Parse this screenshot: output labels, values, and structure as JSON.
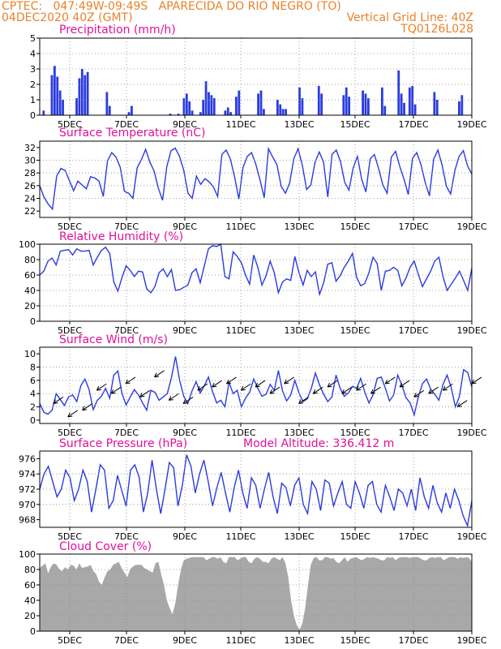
{
  "header": {
    "line1_left": "CPTEC:   047:49W-09:49S   APARECIDA DO RIO NEGRO (TO)",
    "line2_left": "04DEC2020 40Z (GMT)",
    "line2_right": "Vertical Grid Line: 40Z",
    "line3_right": "TQ0126L028"
  },
  "colors": {
    "header": "#e8822a",
    "title": "#e0109a",
    "series": "#2a3be0",
    "cloud": "#a8a8a8"
  },
  "x_ticks": [
    "5DEC",
    "7DEC",
    "9DEC",
    "11DEC",
    "13DEC",
    "15DEC",
    "17DEC",
    "19DEC"
  ],
  "panels": [
    {
      "key": "precip",
      "title": "Precipitation (mm/h)",
      "type": "bar",
      "ylim": [
        0,
        5
      ],
      "yticks": [
        "0",
        "1",
        "2",
        "3",
        "4",
        "5"
      ],
      "values": [
        0,
        0.3,
        0,
        0,
        2.6,
        3.2,
        2.5,
        1.6,
        1.0,
        0,
        0,
        0,
        0,
        1.1,
        2.4,
        3.0,
        2.6,
        2.8,
        0,
        0,
        0,
        0,
        0,
        0,
        1.5,
        0.6,
        0,
        0,
        0,
        0,
        0,
        0,
        0.2,
        0.6,
        0,
        0,
        0,
        0,
        0,
        0,
        0,
        0,
        0,
        0,
        0,
        0,
        0,
        0.1,
        0,
        0,
        0.1,
        0,
        1.1,
        1.4,
        0.9,
        0.3,
        0,
        0,
        0.2,
        1.0,
        2.2,
        1.5,
        1.3,
        1.1,
        0,
        0,
        0,
        0.3,
        0.5,
        0.2,
        0,
        1.2,
        1.6,
        0,
        0,
        0,
        0,
        0,
        0,
        1.4,
        1.6,
        0.4,
        0,
        0,
        0,
        0,
        1.0,
        0.7,
        0.4,
        0.4,
        0,
        0,
        0,
        0,
        1.8,
        1.1,
        0,
        0,
        0,
        0,
        0,
        1.9,
        1.4,
        0,
        0,
        0,
        0,
        0,
        0,
        0,
        1.3,
        1.8,
        1.2,
        0,
        0,
        0,
        0,
        1.6,
        1.4,
        1.1,
        0,
        0,
        0,
        0,
        1.8,
        0.6,
        0,
        0,
        0,
        0,
        2.9,
        1.4,
        0.8,
        0,
        1.8,
        1.9,
        0.7,
        0,
        0,
        0,
        0,
        0,
        0,
        1.5,
        1.0,
        0,
        0,
        0,
        0,
        0,
        0,
        0,
        0.9,
        1.3,
        0,
        0,
        0
      ],
      "title_extra": ""
    },
    {
      "key": "temp",
      "title": "Surface Temperature (nC)",
      "type": "line",
      "ylim": [
        21,
        33
      ],
      "yticks": [
        "22",
        "24",
        "26",
        "28",
        "30",
        "32"
      ],
      "values": [
        26.0,
        24.2,
        23.1,
        22.3,
        27.5,
        28.7,
        28.4,
        26.8,
        25.2,
        26.7,
        26.1,
        25.5,
        27.4,
        27.2,
        26.7,
        24.3,
        29.9,
        31.2,
        30.5,
        28.9,
        25.1,
        24.8,
        24.0,
        28.8,
        30.1,
        31.7,
        29.7,
        28.3,
        25.6,
        23.7,
        29.0,
        31.5,
        31.9,
        30.6,
        28.4,
        24.8,
        24.0,
        27.5,
        26.2,
        27.1,
        26.6,
        25.8,
        24.3,
        30.9,
        31.6,
        30.2,
        27.4,
        23.9,
        28.9,
        30.6,
        31.2,
        29.4,
        26.9,
        24.1,
        31.8,
        30.5,
        29.3,
        25.9,
        24.8,
        26.4,
        30.3,
        31.8,
        29.2,
        25.4,
        26.1,
        29.7,
        31.3,
        29.7,
        24.2,
        30.9,
        31.6,
        29.8,
        26.5,
        25.3,
        28.8,
        30.6,
        27.0,
        25.0,
        30.2,
        30.9,
        28.7,
        26.1,
        24.8,
        30.5,
        31.4,
        29.0,
        27.0,
        24.6,
        30.3,
        31.2,
        29.3,
        26.5,
        24.4,
        30.2,
        31.6,
        29.2,
        25.9,
        24.7,
        28.4,
        30.6,
        31.5,
        29.1,
        27.8
      ],
      "title_extra": ""
    },
    {
      "key": "rh",
      "title": "Relative Humidity (%)",
      "type": "line",
      "ylim": [
        0,
        100
      ],
      "yticks": [
        "0",
        "20",
        "40",
        "60",
        "80",
        "100"
      ],
      "values": [
        60,
        65,
        78,
        82,
        73,
        91,
        92,
        93,
        86,
        94,
        91,
        91,
        92,
        73,
        83,
        92,
        96,
        88,
        51,
        39,
        57,
        72,
        66,
        58,
        65,
        64,
        42,
        37,
        45,
        63,
        68,
        58,
        67,
        40,
        41,
        44,
        47,
        63,
        68,
        50,
        72,
        94,
        98,
        97,
        100,
        58,
        55,
        90,
        84,
        76,
        60,
        48,
        86,
        70,
        47,
        59,
        78,
        63,
        37,
        51,
        55,
        53,
        84,
        63,
        47,
        66,
        58,
        64,
        35,
        50,
        74,
        76,
        52,
        59,
        70,
        78,
        88,
        57,
        46,
        49,
        63,
        83,
        75,
        40,
        65,
        66,
        70,
        66,
        46,
        56,
        70,
        78,
        61,
        45,
        55,
        65,
        78,
        83,
        58,
        40,
        48,
        56,
        65,
        53,
        40,
        69
      ],
      "title_extra": ""
    },
    {
      "key": "wind",
      "title": "Surface Wind (m/s)",
      "type": "line",
      "ylim": [
        -0.5,
        11
      ],
      "yticks": [
        "0",
        "2",
        "4",
        "6",
        "8",
        "10"
      ],
      "values": [
        2.5,
        1.2,
        0.9,
        1.5,
        4.0,
        3.1,
        2.2,
        3.5,
        3.8,
        2.8,
        5.2,
        6.2,
        4.6,
        1.6,
        3.0,
        3.6,
        4.8,
        3.3,
        6.8,
        7.4,
        4.0,
        2.3,
        3.5,
        4.6,
        3.8,
        2.6,
        1.5,
        4.5,
        4.2,
        3.0,
        3.5,
        4.0,
        6.4,
        9.6,
        6.0,
        3.6,
        2.5,
        4.4,
        5.8,
        4.1,
        5.2,
        6.5,
        4.3,
        2.6,
        3.0,
        2.0,
        5.7,
        4.0,
        4.5,
        2.0,
        3.3,
        4.2,
        6.2,
        4.8,
        3.6,
        3.9,
        5.4,
        4.5,
        7.5,
        4.4,
        2.9,
        3.8,
        6.0,
        4.1,
        2.8,
        3.2,
        4.8,
        7.1,
        5.3,
        3.9,
        2.8,
        3.5,
        6.8,
        4.8,
        3.6,
        4.1,
        5.1,
        4.8,
        6.3,
        4.2,
        2.6,
        3.8,
        6.3,
        6.5,
        4.8,
        2.9,
        3.8,
        6.8,
        5.3,
        3.4,
        2.6,
        0.8,
        3.5,
        5.5,
        6.2,
        4.7,
        3.9,
        3.0,
        5.4,
        6.8,
        4.9,
        2.0,
        3.6,
        7.6,
        7.2,
        5.0
      ],
      "arrows": [
        2.5,
        0.5,
        1.5,
        4.5,
        4.0,
        5.5,
        3.5,
        6.5,
        3.0,
        2.5,
        4.5,
        5.0,
        5.5,
        4.5,
        5.0,
        4.0,
        5.5,
        2.5,
        4.0,
        5.0,
        4.0,
        4.5,
        4.0,
        5.5,
        5.0,
        3.5,
        4.0,
        4.5,
        2.0,
        5.5
      ],
      "title_extra": ""
    },
    {
      "key": "pres",
      "title": "Surface Pressure (hPa)",
      "type": "line",
      "ylim": [
        967,
        977
      ],
      "yticks": [
        "968",
        "970",
        "972",
        "974",
        "976"
      ],
      "values": [
        972.0,
        974.0,
        975.0,
        973.0,
        971.0,
        972.0,
        974.5,
        973.5,
        970.5,
        972.0,
        974.5,
        973.0,
        969.0,
        972.0,
        975.2,
        974.5,
        969.5,
        970.5,
        973.8,
        971.8,
        969.8,
        974.5,
        975.2,
        973.6,
        969.0,
        971.5,
        975.8,
        972.0,
        968.8,
        972.0,
        975.5,
        974.8,
        969.8,
        972.5,
        976.5,
        975.0,
        971.5,
        974.0,
        975.8,
        973.0,
        969.8,
        972.2,
        974.2,
        971.5,
        969.0,
        972.2,
        974.5,
        971.5,
        969.5,
        973.5,
        972.5,
        969.5,
        972.0,
        974.2,
        971.0,
        968.8,
        972.8,
        972.2,
        969.8,
        972.5,
        973.5,
        970.0,
        968.8,
        973.0,
        972.0,
        969.2,
        973.2,
        972.8,
        969.8,
        971.5,
        973.0,
        970.0,
        969.5,
        973.0,
        971.5,
        969.5,
        972.5,
        973.0,
        970.0,
        969.0,
        972.5,
        971.0,
        969.2,
        972.0,
        971.5,
        969.8,
        972.0,
        969.2,
        973.5,
        971.0,
        969.5,
        972.5,
        970.2,
        969.0,
        971.5,
        969.5,
        972.0,
        970.5,
        968.5,
        967.2,
        970.5
      ],
      "title_extra": "Model Altitude: 336.412  m"
    },
    {
      "key": "cloud",
      "title": "Cloud Cover (%)",
      "type": "area",
      "ylim": [
        0,
        100
      ],
      "yticks": [
        "0",
        "20",
        "40",
        "60",
        "80",
        "100"
      ],
      "values": [
        82,
        85,
        88,
        75,
        84,
        88,
        86,
        80,
        78,
        83,
        80,
        86,
        85,
        80,
        88,
        82,
        83,
        84,
        86,
        78,
        74,
        64,
        60,
        70,
        78,
        80,
        86,
        88,
        90,
        82,
        76,
        70,
        80,
        84,
        86,
        86,
        86,
        82,
        80,
        78,
        76,
        88,
        90,
        74,
        60,
        40,
        30,
        22,
        36,
        60,
        80,
        92,
        94,
        95,
        96,
        96,
        96,
        96,
        96,
        92,
        94,
        96,
        96,
        94,
        96,
        90,
        88,
        96,
        96,
        96,
        92,
        94,
        96,
        96,
        90,
        88,
        94,
        96,
        94,
        90,
        90,
        88,
        94,
        96,
        94,
        92,
        96,
        88,
        70,
        40,
        20,
        8,
        2,
        10,
        30,
        60,
        86,
        95,
        96,
        92,
        92,
        96,
        96,
        94,
        95,
        90,
        88,
        92,
        96,
        90,
        94,
        95,
        96,
        94,
        92,
        94,
        96,
        95,
        96,
        95,
        94,
        92,
        92,
        96,
        95,
        96,
        92,
        95,
        96,
        96,
        96,
        95,
        96,
        96,
        96,
        94,
        92,
        92,
        95,
        96,
        95,
        96,
        96,
        92,
        94,
        96,
        96,
        96,
        94,
        96,
        95,
        96,
        95,
        90
      ],
      "title_extra": ""
    }
  ]
}
